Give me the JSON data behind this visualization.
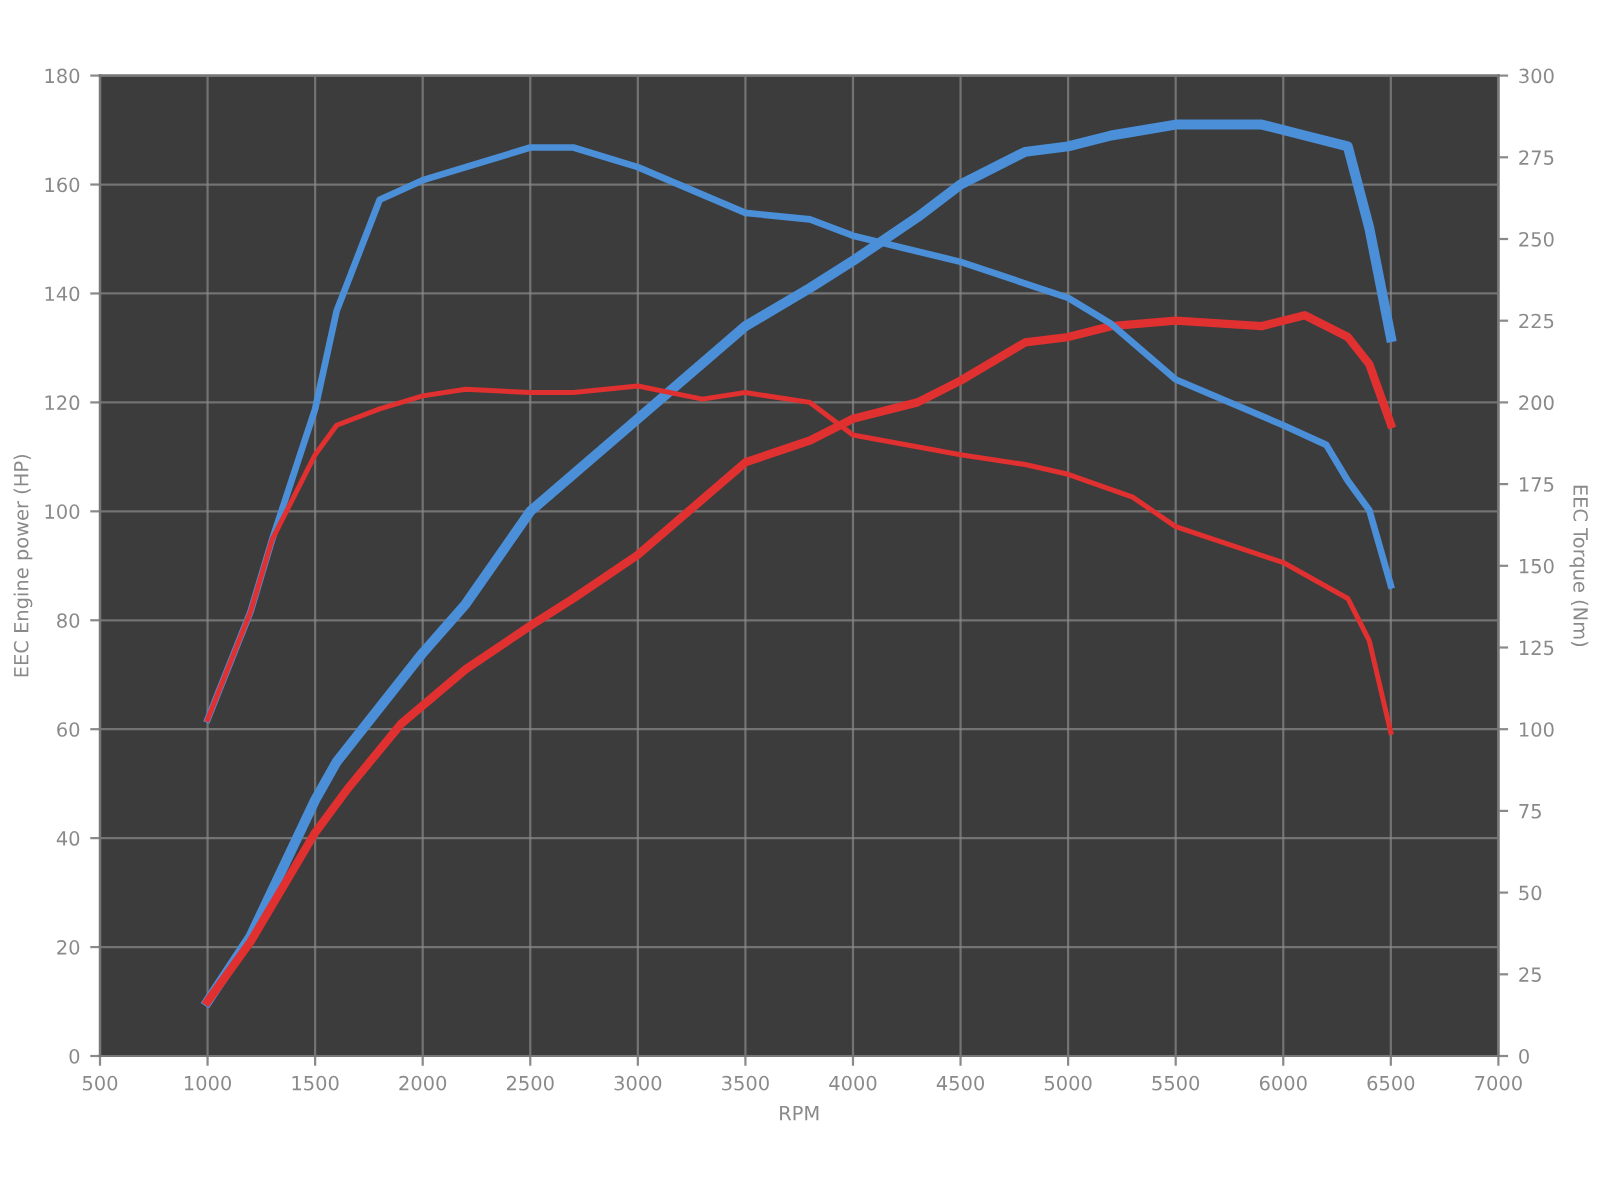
{
  "chart_data": {
    "type": "line",
    "xlabel": "RPM",
    "ylabel": "EEC Engine power (HP)",
    "y2label": "EEC Torque (Nm)",
    "xlim": [
      500,
      7000
    ],
    "xticks": [
      500,
      1000,
      1500,
      2000,
      2500,
      3000,
      3500,
      4000,
      4500,
      5000,
      5500,
      6000,
      6500,
      7000
    ],
    "ylim": [
      0,
      180
    ],
    "yticks": [
      0,
      20,
      40,
      60,
      80,
      100,
      120,
      140,
      160,
      180
    ],
    "y2lim": [
      0,
      300
    ],
    "y2ticks": [
      0,
      25,
      50,
      75,
      100,
      125,
      150,
      175,
      200,
      225,
      250,
      275,
      300
    ],
    "grid": true,
    "marker": "none",
    "line_style": "solid",
    "series": [
      {
        "color": "#4a8fd8",
        "x": [
          1000,
          1200,
          1500,
          1600,
          2000,
          2200,
          2500,
          3000,
          3500,
          3800,
          4000,
          4300,
          4500,
          4800,
          5000,
          5200,
          5500,
          5900,
          6100,
          6300,
          6400,
          6500
        ],
        "values": [
          10,
          22,
          47,
          54,
          74,
          83,
          100,
          117,
          134,
          141,
          146,
          154,
          160,
          166,
          167,
          169,
          171,
          171,
          169,
          167,
          152,
          132
        ]
      },
      {
        "color": "#e03030",
        "x": [
          1000,
          1200,
          1500,
          1650,
          1900,
          2200,
          2500,
          2700,
          3000,
          3500,
          3800,
          4000,
          4300,
          4500,
          4800,
          5000,
          5200,
          5500,
          5900,
          6100,
          6300,
          6400,
          6500
        ],
        "values": [
          10,
          21,
          41,
          49,
          61,
          71,
          79,
          84,
          92,
          109,
          113,
          117,
          120,
          124,
          131,
          132,
          134,
          135,
          134,
          136,
          132,
          127,
          116
        ]
      },
      {
        "color": "#4a8fd8",
        "axis": "y2",
        "x": [
          1000,
          1200,
          1300,
          1500,
          1600,
          1800,
          2000,
          2500,
          2700,
          3000,
          3500,
          3800,
          4000,
          4500,
          5000,
          5200,
          5500,
          6000,
          6200,
          6300,
          6400,
          6500
        ],
        "values": [
          103,
          136,
          158,
          198,
          228,
          262,
          268,
          278,
          278,
          272,
          258,
          256,
          251,
          243,
          232,
          224,
          207,
          193,
          187,
          176,
          167,
          144
        ]
      },
      {
        "color": "#e03030",
        "axis": "y2",
        "x": [
          1000,
          1200,
          1300,
          1500,
          1600,
          1800,
          2000,
          2200,
          2500,
          2700,
          3000,
          3300,
          3500,
          3800,
          4000,
          4500,
          4800,
          5000,
          5300,
          5500,
          6000,
          6300,
          6400,
          6500
        ],
        "values": [
          103,
          136,
          158,
          184,
          193,
          198,
          202,
          204,
          203,
          203,
          205,
          201,
          203,
          200,
          190,
          184,
          181,
          178,
          171,
          162,
          151,
          140,
          127,
          99
        ]
      }
    ]
  }
}
